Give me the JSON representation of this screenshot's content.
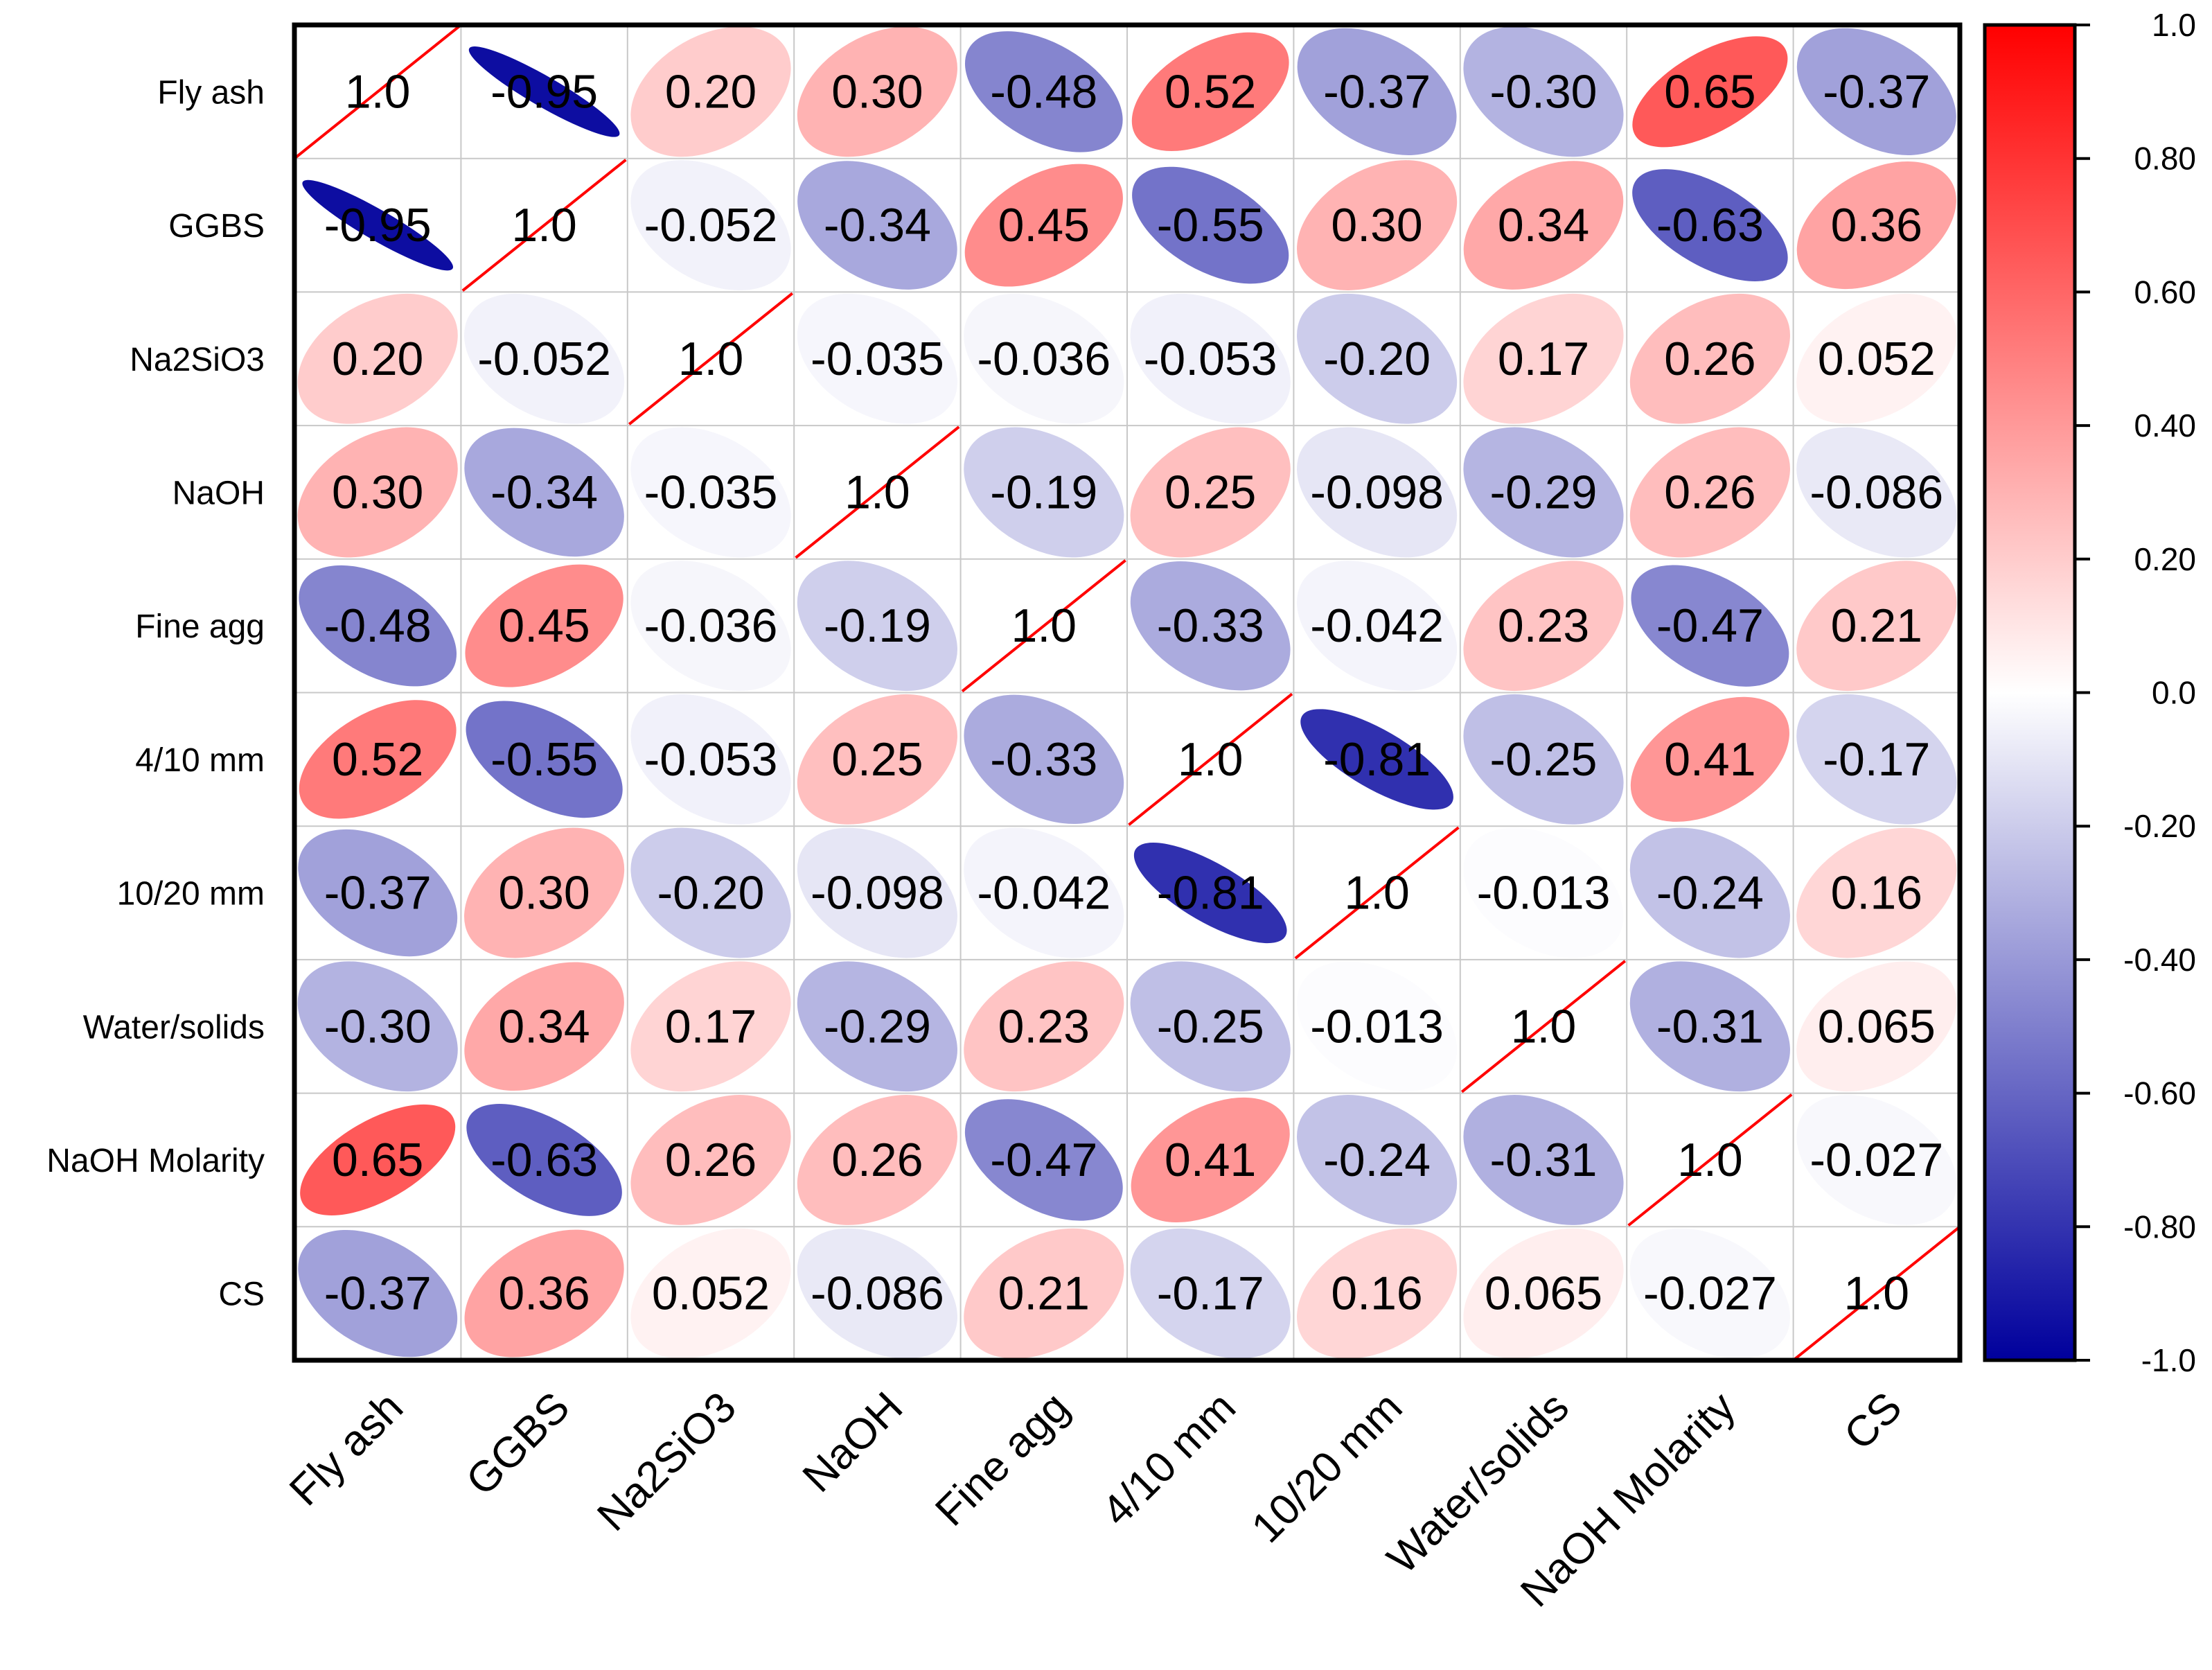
{
  "chart_data": {
    "type": "heatmap",
    "style": "ellipse correlation matrix",
    "variables": [
      "Fly ash",
      "GGBS",
      "Na2SiO3",
      "NaOH",
      "Fine agg",
      "4/10 mm",
      "10/20 mm",
      "Water/solids",
      "NaOH Molarity",
      "CS"
    ],
    "matrix": [
      [
        1.0,
        -0.95,
        0.2,
        0.3,
        -0.48,
        0.52,
        -0.37,
        -0.3,
        0.65,
        -0.37
      ],
      [
        -0.95,
        1.0,
        -0.052,
        -0.34,
        0.45,
        -0.55,
        0.3,
        0.34,
        -0.63,
        0.36
      ],
      [
        0.2,
        -0.052,
        1.0,
        -0.035,
        -0.036,
        -0.053,
        -0.2,
        0.17,
        0.26,
        0.052
      ],
      [
        0.3,
        -0.34,
        -0.035,
        1.0,
        -0.19,
        0.25,
        -0.098,
        -0.29,
        0.26,
        -0.086
      ],
      [
        -0.48,
        0.45,
        -0.036,
        -0.19,
        1.0,
        -0.33,
        -0.042,
        0.23,
        -0.47,
        0.21
      ],
      [
        0.52,
        -0.55,
        -0.053,
        0.25,
        -0.33,
        1.0,
        -0.81,
        -0.25,
        0.41,
        -0.17
      ],
      [
        -0.37,
        0.3,
        -0.2,
        -0.098,
        -0.042,
        -0.81,
        1.0,
        -0.013,
        -0.24,
        0.16
      ],
      [
        -0.3,
        0.34,
        0.17,
        -0.29,
        0.23,
        -0.25,
        -0.013,
        1.0,
        -0.31,
        0.065
      ],
      [
        0.65,
        -0.63,
        0.26,
        0.26,
        -0.47,
        0.41,
        -0.24,
        -0.31,
        1.0,
        -0.027
      ],
      [
        -0.37,
        0.36,
        0.052,
        -0.086,
        0.21,
        -0.17,
        0.16,
        0.065,
        -0.027,
        1.0
      ]
    ],
    "cell_labels": [
      [
        "1.0",
        "-0.95",
        "0.20",
        "0.30",
        "-0.48",
        "0.52",
        "-0.37",
        "-0.30",
        "0.65",
        "-0.37"
      ],
      [
        "-0.95",
        "1.0",
        "-0.052",
        "-0.34",
        "0.45",
        "-0.55",
        "0.30",
        "0.34",
        "-0.63",
        "0.36"
      ],
      [
        "0.20",
        "-0.052",
        "1.0",
        "-0.035",
        "-0.036",
        "-0.053",
        "-0.20",
        "0.17",
        "0.26",
        "0.052"
      ],
      [
        "0.30",
        "-0.34",
        "-0.035",
        "1.0",
        "-0.19",
        "0.25",
        "-0.098",
        "-0.29",
        "0.26",
        "-0.086"
      ],
      [
        "-0.48",
        "0.45",
        "-0.036",
        "-0.19",
        "1.0",
        "-0.33",
        "-0.042",
        "0.23",
        "-0.47",
        "0.21"
      ],
      [
        "0.52",
        "-0.55",
        "-0.053",
        "0.25",
        "-0.33",
        "1.0",
        "-0.81",
        "-0.25",
        "0.41",
        "-0.17"
      ],
      [
        "-0.37",
        "0.30",
        "-0.20",
        "-0.098",
        "-0.042",
        "-0.81",
        "1.0",
        "-0.013",
        "-0.24",
        "0.16"
      ],
      [
        "-0.30",
        "0.34",
        "0.17",
        "-0.29",
        "0.23",
        "-0.25",
        "-0.013",
        "1.0",
        "-0.31",
        "0.065"
      ],
      [
        "0.65",
        "-0.63",
        "0.26",
        "0.26",
        "-0.47",
        "0.41",
        "-0.24",
        "-0.31",
        "1.0",
        "-0.027"
      ],
      [
        "-0.37",
        "0.36",
        "0.052",
        "-0.086",
        "0.21",
        "-0.17",
        "0.16",
        "0.065",
        "-0.027",
        "1.0"
      ]
    ],
    "colorbar": {
      "range": [
        -1.0,
        1.0
      ],
      "ticks": [
        1.0,
        0.8,
        0.6,
        0.4,
        0.2,
        0.0,
        -0.2,
        -0.4,
        -0.6,
        -0.8,
        -1.0
      ],
      "tick_labels": [
        "1.0",
        "0.80",
        "0.60",
        "0.40",
        "0.20",
        "0.0",
        "-0.20",
        "-0.40",
        "-0.60",
        "-0.80",
        "-1.0"
      ],
      "colors": {
        "positive": "#ff0000",
        "zero": "#ffffff",
        "negative": "#00009c"
      },
      "placement": "right"
    },
    "diagonal_line_color": "#ff0000",
    "grid": true
  }
}
